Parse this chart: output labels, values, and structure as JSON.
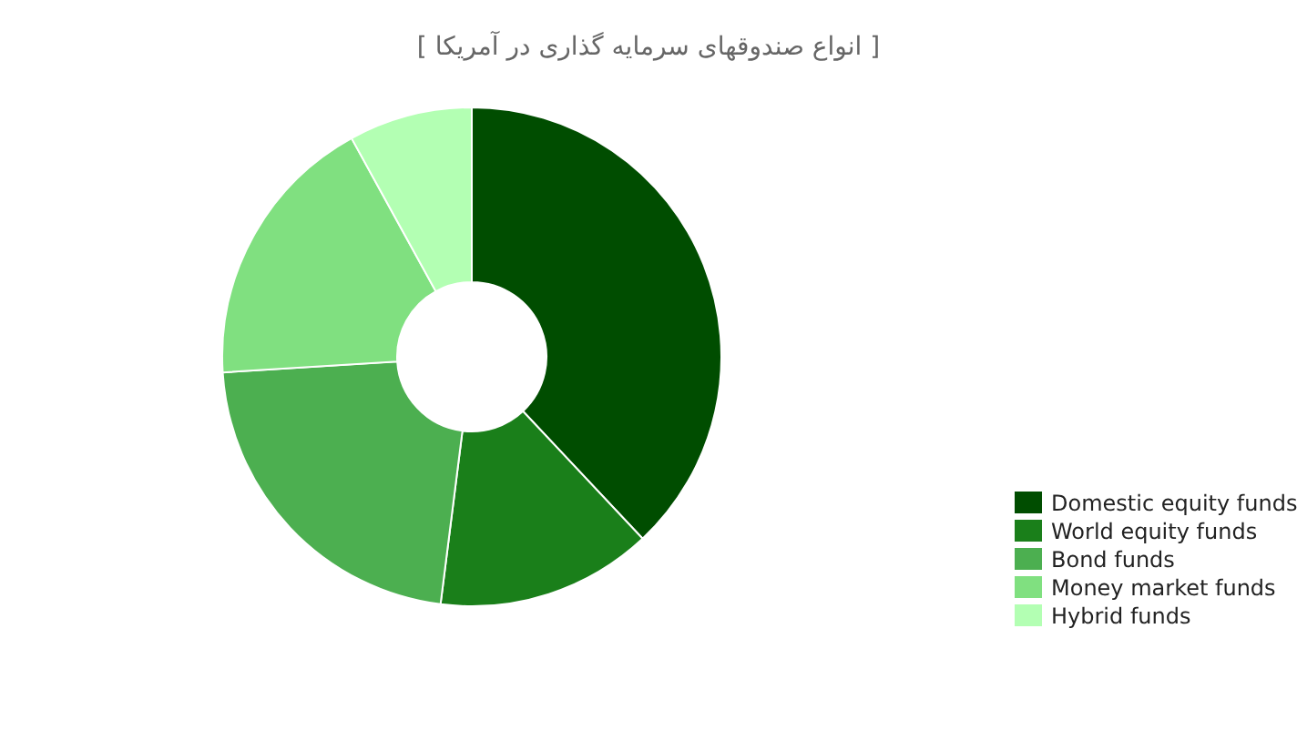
{
  "chart_data": {
    "type": "donut",
    "title": "[ انواع صندوقهای سرمایه گذاری در آمریکا ]",
    "categories": [
      "Domestic equity funds",
      "World equity funds",
      "Bond funds",
      "Money market funds",
      "Hybrid funds"
    ],
    "values": [
      38,
      14,
      22,
      18,
      8
    ],
    "colors": [
      "#004d00",
      "#1a7f1a",
      "#4caf50",
      "#80e080",
      "#b3ffb3"
    ],
    "legend": "bottom right"
  }
}
